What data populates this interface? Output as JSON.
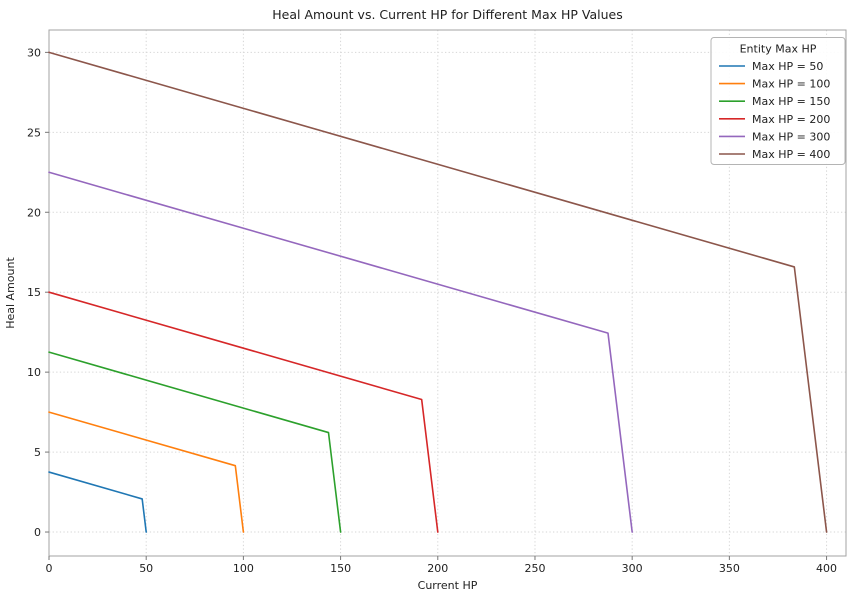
{
  "figure": {
    "background": "#ffffff",
    "text_color": "#1f1f1f",
    "spine_color": "#a3a3a3",
    "tick_color": "#777777",
    "grid_color": "#d6d6d6",
    "legend_border_color": "#b4b4b4",
    "legend_background": "#ffffff"
  },
  "chart_data": {
    "type": "line",
    "title": "Heal Amount vs. Current HP for Different Max HP Values",
    "xlabel": "Current HP",
    "ylabel": "Heal Amount",
    "xlim": [
      0,
      410
    ],
    "ylim": [
      -1.5,
      31.4
    ],
    "xticks": [
      0,
      50,
      100,
      150,
      200,
      250,
      300,
      350,
      400
    ],
    "yticks": [
      0,
      5,
      10,
      15,
      20,
      25,
      30
    ],
    "grid": true,
    "grid_style": "dotted",
    "legend": {
      "title": "Entity Max HP",
      "position": "upper right"
    },
    "series": [
      {
        "name": "Max HP = 50",
        "max_hp": 50,
        "color": "#1f77b4",
        "points": [
          [
            0,
            3.75
          ],
          [
            47.93,
            2.07
          ],
          [
            50,
            0
          ]
        ]
      },
      {
        "name": "Max HP = 100",
        "max_hp": 100,
        "color": "#ff7f0e",
        "points": [
          [
            0,
            7.5
          ],
          [
            95.85,
            4.15
          ],
          [
            100,
            0
          ]
        ]
      },
      {
        "name": "Max HP = 150",
        "max_hp": 150,
        "color": "#2ca02c",
        "points": [
          [
            0,
            11.25
          ],
          [
            143.78,
            6.22
          ],
          [
            150,
            0
          ]
        ]
      },
      {
        "name": "Max HP = 200",
        "max_hp": 200,
        "color": "#d62728",
        "points": [
          [
            0,
            15
          ],
          [
            191.71,
            8.29
          ],
          [
            200,
            0
          ]
        ]
      },
      {
        "name": "Max HP = 300",
        "max_hp": 300,
        "color": "#9467bd",
        "points": [
          [
            0,
            22.5
          ],
          [
            287.56,
            12.44
          ],
          [
            300,
            0
          ]
        ]
      },
      {
        "name": "Max HP = 400",
        "max_hp": 400,
        "color": "#8c564b",
        "points": [
          [
            0,
            30
          ],
          [
            383.42,
            16.58
          ],
          [
            400,
            0
          ]
        ]
      }
    ]
  }
}
